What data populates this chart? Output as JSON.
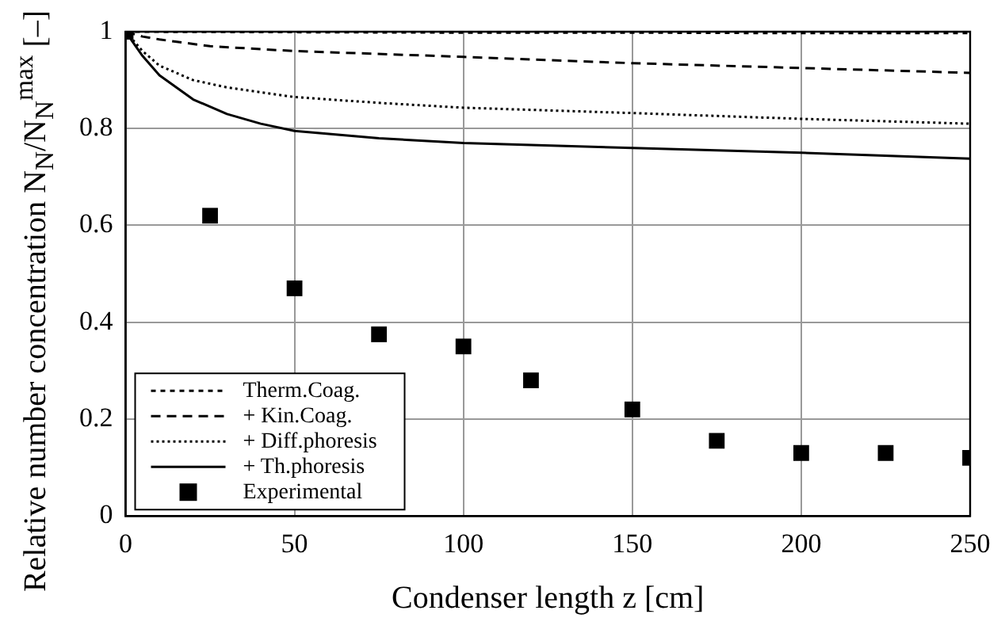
{
  "chart_data": {
    "type": "line",
    "xlabel": "Condenser length z [cm]",
    "ylabel": "Relative number concentration N$_{N}$/N$_{N}$$^{max}$ [–]",
    "xlim": [
      0,
      250
    ],
    "xticks": [
      0,
      50,
      100,
      150,
      200,
      250
    ],
    "ylim": [
      0,
      1
    ],
    "yticks": [
      0,
      0.2,
      0.4,
      0.6,
      0.8,
      1
    ],
    "grid": true,
    "legend": "bottom left",
    "series": [
      {
        "name": "Therm.Coag.",
        "color": "#000000",
        "line_style": "dashed",
        "marker": "none",
        "x": [
          0,
          50,
          100,
          150,
          200,
          250
        ],
        "values": [
          1,
          0.999,
          0.998,
          0.998,
          0.997,
          0.997
        ]
      },
      {
        "name": "+ Kin.Coag.",
        "color": "#000000",
        "line_style": "dashed",
        "marker": "none",
        "x": [
          0,
          5,
          10,
          25,
          50,
          100,
          150,
          200,
          250
        ],
        "values": [
          1,
          0.99,
          0.984,
          0.97,
          0.96,
          0.948,
          0.935,
          0.925,
          0.915
        ]
      },
      {
        "name": "+ Diff.phoresis",
        "color": "#000000",
        "line_style": "dotted",
        "marker": "none",
        "x": [
          0,
          5,
          10,
          20,
          30,
          50,
          75,
          100,
          150,
          200,
          250
        ],
        "values": [
          1,
          0.96,
          0.93,
          0.9,
          0.885,
          0.865,
          0.853,
          0.843,
          0.832,
          0.82,
          0.81
        ]
      },
      {
        "name": "+ Th.phoresis",
        "color": "#000000",
        "line_style": "solid",
        "marker": "none",
        "x": [
          0,
          5,
          10,
          20,
          30,
          40,
          50,
          75,
          100,
          150,
          200,
          250
        ],
        "values": [
          1,
          0.95,
          0.91,
          0.86,
          0.83,
          0.81,
          0.795,
          0.78,
          0.77,
          0.76,
          0.75,
          0.738
        ]
      },
      {
        "name": "Experimental",
        "type": "scatter",
        "color": "#000000",
        "marker": "square",
        "x": [
          0,
          25,
          50,
          75,
          100,
          120,
          150,
          175,
          200,
          225,
          250
        ],
        "values": [
          1,
          0.62,
          0.47,
          0.375,
          0.35,
          0.28,
          0.22,
          0.155,
          0.13,
          0.13,
          0.12
        ]
      }
    ]
  }
}
